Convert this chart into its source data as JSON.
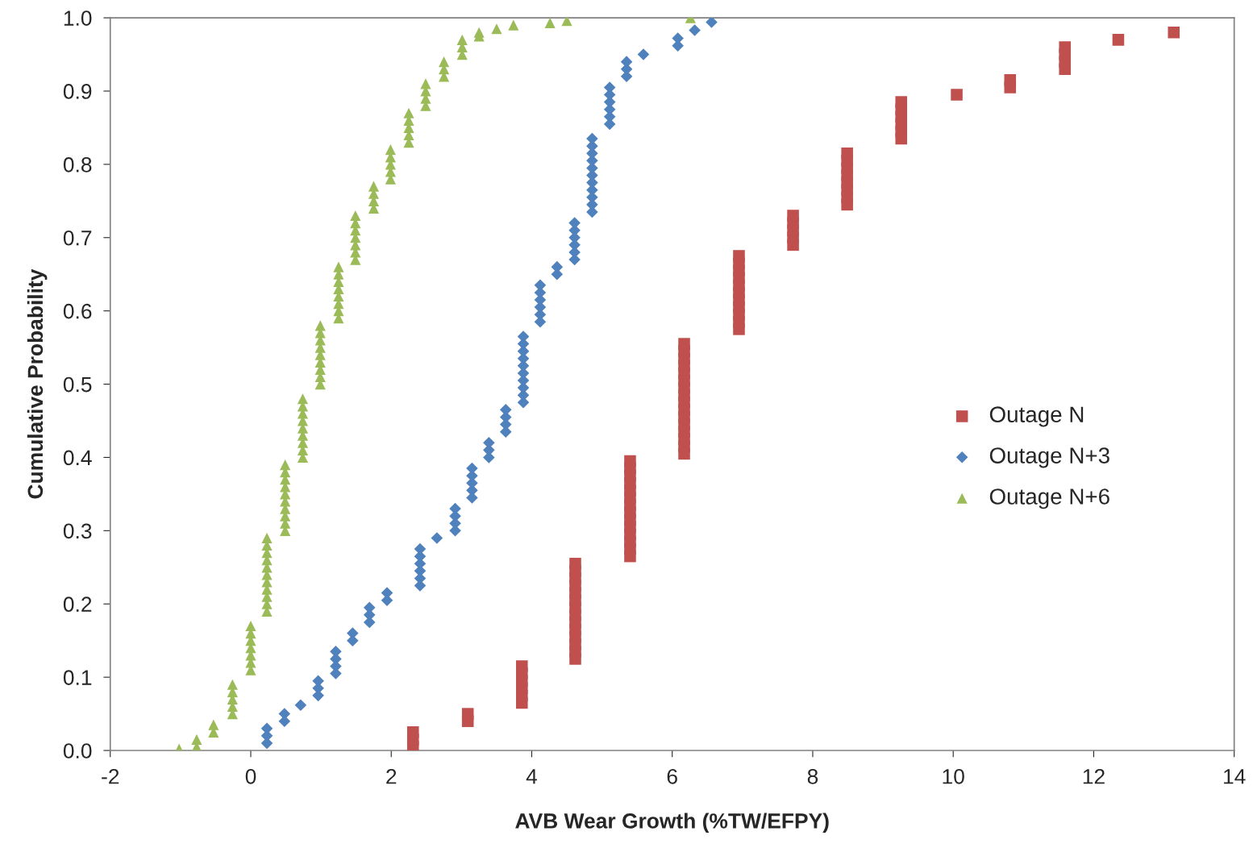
{
  "chart_data": {
    "type": "scatter",
    "xlabel": "AVB Wear Growth (%TW/EFPY)",
    "ylabel": "Cumulative Probability",
    "xlim": [
      -2,
      14
    ],
    "xticks": [
      -2,
      0,
      2,
      4,
      6,
      8,
      10,
      12,
      14
    ],
    "ylim": [
      0,
      1
    ],
    "yticks": [
      {
        "value": 0,
        "label": "0.0"
      },
      {
        "value": 0.1,
        "label": "0.1"
      },
      {
        "value": 0.2,
        "label": "0.2"
      },
      {
        "value": 0.3,
        "label": "0.3"
      },
      {
        "value": 0.4,
        "label": "0.4"
      },
      {
        "value": 0.5,
        "label": "0.5"
      },
      {
        "value": 0.6,
        "label": "0.6"
      },
      {
        "value": 0.7,
        "label": "0.7"
      },
      {
        "value": 0.8,
        "label": "0.8"
      },
      {
        "value": 0.9,
        "label": "0.9"
      },
      {
        "value": 1,
        "label": "1.0"
      }
    ],
    "grid": false,
    "legend": "right",
    "series": [
      {
        "name": "Outage N",
        "color": "#c0504d",
        "marker": "square",
        "x": [
          2.31,
          2.31,
          2.31,
          3.09,
          3.09,
          3.86,
          3.86,
          3.86,
          3.86,
          3.86,
          3.86,
          4.62,
          4.62,
          4.62,
          4.62,
          4.62,
          4.62,
          4.62,
          4.62,
          4.62,
          4.62,
          4.62,
          4.62,
          4.62,
          4.62,
          5.4,
          5.4,
          5.4,
          5.4,
          5.4,
          5.4,
          5.4,
          5.4,
          5.4,
          5.4,
          5.4,
          5.4,
          5.4,
          5.4,
          6.17,
          6.17,
          6.17,
          6.17,
          6.17,
          6.17,
          6.17,
          6.17,
          6.17,
          6.17,
          6.17,
          6.17,
          6.17,
          6.17,
          6.17,
          6.17,
          6.95,
          6.95,
          6.95,
          6.95,
          6.95,
          6.95,
          6.95,
          6.95,
          6.95,
          6.95,
          6.95,
          7.72,
          7.72,
          7.72,
          7.72,
          7.72,
          8.49,
          8.49,
          8.49,
          8.49,
          8.49,
          8.49,
          8.49,
          8.49,
          9.26,
          9.26,
          9.26,
          9.26,
          9.26,
          9.26,
          10.05,
          10.81,
          10.81,
          11.59,
          11.59,
          11.59,
          11.59,
          12.35,
          13.14
        ],
        "values": [
          0.005,
          0.015,
          0.025,
          0.04,
          0.05,
          0.065,
          0.075,
          0.085,
          0.095,
          0.105,
          0.115,
          0.125,
          0.135,
          0.145,
          0.155,
          0.165,
          0.175,
          0.185,
          0.195,
          0.205,
          0.215,
          0.225,
          0.235,
          0.245,
          0.255,
          0.265,
          0.275,
          0.285,
          0.295,
          0.305,
          0.315,
          0.325,
          0.335,
          0.345,
          0.355,
          0.365,
          0.375,
          0.385,
          0.395,
          0.405,
          0.415,
          0.425,
          0.435,
          0.445,
          0.455,
          0.465,
          0.475,
          0.485,
          0.495,
          0.505,
          0.515,
          0.525,
          0.535,
          0.545,
          0.555,
          0.575,
          0.585,
          0.595,
          0.605,
          0.615,
          0.625,
          0.635,
          0.645,
          0.655,
          0.665,
          0.675,
          0.69,
          0.7,
          0.71,
          0.72,
          0.73,
          0.745,
          0.755,
          0.765,
          0.775,
          0.785,
          0.795,
          0.805,
          0.815,
          0.835,
          0.845,
          0.855,
          0.865,
          0.875,
          0.885,
          0.895,
          0.905,
          0.915,
          0.93,
          0.94,
          0.95,
          0.96,
          0.97,
          0.98
        ]
      },
      {
        "name": "Outage N+3",
        "color": "#4f81bd",
        "marker": "diamond",
        "x": [
          0.23,
          0.23,
          0.23,
          0.48,
          0.48,
          0.71,
          0.96,
          0.96,
          0.96,
          1.21,
          1.21,
          1.21,
          1.21,
          1.45,
          1.45,
          1.69,
          1.69,
          1.69,
          1.94,
          1.94,
          2.41,
          2.41,
          2.41,
          2.41,
          2.41,
          2.41,
          2.65,
          2.91,
          2.91,
          2.91,
          2.91,
          3.15,
          3.15,
          3.15,
          3.15,
          3.15,
          3.39,
          3.39,
          3.39,
          3.63,
          3.63,
          3.63,
          3.63,
          3.88,
          3.88,
          3.88,
          3.88,
          3.88,
          3.88,
          3.88,
          3.88,
          3.88,
          3.88,
          4.12,
          4.12,
          4.12,
          4.12,
          4.12,
          4.12,
          4.36,
          4.36,
          4.61,
          4.61,
          4.61,
          4.61,
          4.61,
          4.61,
          4.86,
          4.86,
          4.86,
          4.86,
          4.86,
          4.86,
          4.86,
          4.86,
          4.86,
          4.86,
          4.86,
          5.11,
          5.11,
          5.11,
          5.11,
          5.11,
          5.11,
          5.35,
          5.35,
          5.35,
          5.59,
          6.08,
          6.08,
          6.32,
          6.56
        ],
        "values": [
          0.01,
          0.02,
          0.03,
          0.04,
          0.05,
          0.062,
          0.075,
          0.085,
          0.095,
          0.105,
          0.115,
          0.125,
          0.135,
          0.15,
          0.16,
          0.175,
          0.185,
          0.195,
          0.205,
          0.215,
          0.225,
          0.235,
          0.245,
          0.255,
          0.265,
          0.275,
          0.29,
          0.3,
          0.31,
          0.32,
          0.33,
          0.345,
          0.355,
          0.365,
          0.375,
          0.385,
          0.4,
          0.41,
          0.42,
          0.435,
          0.445,
          0.455,
          0.465,
          0.475,
          0.485,
          0.495,
          0.505,
          0.515,
          0.525,
          0.535,
          0.545,
          0.555,
          0.565,
          0.585,
          0.595,
          0.605,
          0.615,
          0.625,
          0.635,
          0.65,
          0.66,
          0.67,
          0.68,
          0.69,
          0.7,
          0.71,
          0.72,
          0.735,
          0.745,
          0.755,
          0.765,
          0.775,
          0.785,
          0.795,
          0.805,
          0.815,
          0.825,
          0.835,
          0.855,
          0.865,
          0.875,
          0.885,
          0.895,
          0.905,
          0.92,
          0.93,
          0.94,
          0.95,
          0.962,
          0.972,
          0.983,
          0.994
        ]
      },
      {
        "name": "Outage N+6",
        "color": "#9bbb59",
        "marker": "triangle",
        "x": [
          -1.02,
          -0.77,
          -0.77,
          -0.53,
          -0.53,
          -0.26,
          -0.26,
          -0.26,
          -0.26,
          -0.26,
          0,
          0,
          0,
          0,
          0,
          0,
          0,
          0.23,
          0.23,
          0.23,
          0.23,
          0.23,
          0.23,
          0.23,
          0.23,
          0.23,
          0.23,
          0.23,
          0.49,
          0.49,
          0.49,
          0.49,
          0.49,
          0.49,
          0.49,
          0.49,
          0.49,
          0.49,
          0.74,
          0.74,
          0.74,
          0.74,
          0.74,
          0.74,
          0.74,
          0.74,
          0.74,
          0.99,
          0.99,
          0.99,
          0.99,
          0.99,
          0.99,
          0.99,
          0.99,
          0.99,
          1.25,
          1.25,
          1.25,
          1.25,
          1.25,
          1.25,
          1.25,
          1.25,
          1.49,
          1.49,
          1.49,
          1.49,
          1.49,
          1.49,
          1.49,
          1.75,
          1.75,
          1.75,
          1.75,
          1.99,
          1.99,
          1.99,
          1.99,
          1.99,
          2.25,
          2.25,
          2.25,
          2.25,
          2.25,
          2.49,
          2.49,
          2.49,
          2.49,
          2.75,
          2.75,
          2.75,
          3.01,
          3.01,
          3.01,
          3.25,
          3.25,
          3.5,
          3.74,
          4.26,
          4.5,
          6.26
        ],
        "values": [
          0.002,
          0.005,
          0.015,
          0.025,
          0.035,
          0.05,
          0.06,
          0.07,
          0.08,
          0.09,
          0.11,
          0.12,
          0.13,
          0.14,
          0.15,
          0.16,
          0.17,
          0.19,
          0.2,
          0.21,
          0.22,
          0.23,
          0.24,
          0.25,
          0.26,
          0.27,
          0.28,
          0.29,
          0.3,
          0.31,
          0.32,
          0.33,
          0.34,
          0.35,
          0.36,
          0.37,
          0.38,
          0.39,
          0.4,
          0.41,
          0.42,
          0.43,
          0.44,
          0.45,
          0.46,
          0.47,
          0.48,
          0.5,
          0.51,
          0.52,
          0.53,
          0.54,
          0.55,
          0.56,
          0.57,
          0.58,
          0.59,
          0.6,
          0.61,
          0.62,
          0.63,
          0.64,
          0.65,
          0.66,
          0.67,
          0.68,
          0.69,
          0.7,
          0.71,
          0.72,
          0.73,
          0.74,
          0.75,
          0.76,
          0.77,
          0.78,
          0.79,
          0.8,
          0.81,
          0.82,
          0.83,
          0.84,
          0.85,
          0.86,
          0.87,
          0.88,
          0.89,
          0.9,
          0.91,
          0.92,
          0.93,
          0.94,
          0.95,
          0.96,
          0.97,
          0.975,
          0.98,
          0.985,
          0.99,
          0.993,
          0.996,
          1.0
        ]
      }
    ]
  }
}
